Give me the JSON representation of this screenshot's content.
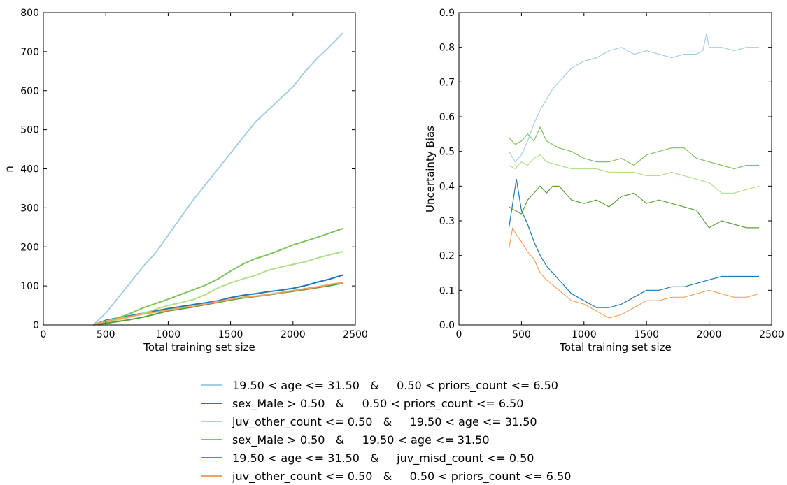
{
  "colors": {
    "series": [
      "#a6cee3",
      "#1f78b4",
      "#b2df8a",
      "#80c35f",
      "#5c9e3a",
      "#f4a261"
    ]
  },
  "legend": [
    "19.50 < age <= 31.50   &     0.50 < priors_count <= 6.50",
    "sex_Male > 0.50   &     0.50 < priors_count <= 6.50",
    "juv_other_count <= 0.50   &     19.50 < age <= 31.50",
    "sex_Male > 0.50   &     19.50 < age <= 31.50",
    "19.50 < age <= 31.50   &     juv_misd_count <= 0.50",
    "juv_other_count <= 0.50   &     0.50 < priors_count <= 6.50"
  ],
  "chart_data": [
    {
      "type": "line",
      "xlabel": "Total training set size",
      "ylabel": "n",
      "xlim": [
        0,
        2500
      ],
      "ylim": [
        0,
        800
      ],
      "xticks": [
        "0",
        "500",
        "1000",
        "1500",
        "2000",
        "2500"
      ],
      "yticks": [
        "0",
        "100",
        "200",
        "300",
        "400",
        "500",
        "600",
        "700",
        "800"
      ],
      "series": [
        {
          "name": "19.50 < age <= 31.50   &     0.50 < priors_count <= 6.50",
          "x": [
            400,
            500,
            600,
            700,
            800,
            900,
            1000,
            1100,
            1200,
            1300,
            1400,
            1500,
            1600,
            1700,
            1800,
            1900,
            2000,
            2100,
            2200,
            2300,
            2400
          ],
          "y": [
            0,
            30,
            70,
            110,
            150,
            185,
            230,
            275,
            320,
            360,
            400,
            440,
            480,
            520,
            550,
            580,
            610,
            650,
            685,
            715,
            748
          ]
        },
        {
          "name": "sex_Male > 0.50   &     0.50 < priors_count <= 6.50",
          "x": [
            400,
            500,
            600,
            700,
            800,
            900,
            1000,
            1100,
            1200,
            1300,
            1400,
            1500,
            1600,
            1700,
            1800,
            1900,
            2000,
            2100,
            2200,
            2300,
            2400
          ],
          "y": [
            0,
            12,
            18,
            24,
            30,
            36,
            42,
            47,
            52,
            57,
            62,
            70,
            76,
            80,
            85,
            89,
            94,
            101,
            110,
            118,
            128
          ]
        },
        {
          "name": "juv_other_count <= 0.50   &     19.50 < age <= 31.50",
          "x": [
            400,
            500,
            600,
            700,
            800,
            900,
            1000,
            1100,
            1200,
            1300,
            1400,
            1500,
            1600,
            1700,
            1800,
            1900,
            2000,
            2100,
            2200,
            2300,
            2400
          ],
          "y": [
            0,
            6,
            13,
            20,
            30,
            40,
            50,
            57,
            65,
            78,
            95,
            108,
            118,
            127,
            140,
            148,
            155,
            162,
            172,
            180,
            188
          ]
        },
        {
          "name": "sex_Male > 0.50   &     19.50 < age <= 31.50",
          "x": [
            400,
            500,
            600,
            700,
            800,
            900,
            1000,
            1100,
            1200,
            1300,
            1400,
            1500,
            1600,
            1700,
            1800,
            1900,
            2000,
            2100,
            2200,
            2300,
            2400
          ],
          "y": [
            0,
            8,
            18,
            30,
            44,
            55,
            66,
            78,
            90,
            102,
            118,
            138,
            156,
            170,
            180,
            192,
            205,
            215,
            225,
            236,
            247
          ]
        },
        {
          "name": "19.50 < age <= 31.50   &     juv_misd_count <= 0.50",
          "x": [
            400,
            500,
            600,
            700,
            800,
            900,
            1000,
            1100,
            1200,
            1300,
            1400,
            1500,
            1600,
            1700,
            1800,
            1900,
            2000,
            2100,
            2200,
            2300,
            2400
          ],
          "y": [
            0,
            4,
            9,
            14,
            20,
            28,
            36,
            41,
            46,
            52,
            58,
            64,
            69,
            73,
            77,
            82,
            86,
            91,
            96,
            101,
            107
          ]
        },
        {
          "name": "juv_other_count <= 0.50   &     0.50 < priors_count <= 6.50",
          "x": [
            400,
            500,
            600,
            700,
            800,
            900,
            1000,
            1100,
            1200,
            1300,
            1400,
            1500,
            1600,
            1700,
            1800,
            1900,
            2000,
            2100,
            2200,
            2300,
            2400
          ],
          "y": [
            0,
            10,
            16,
            22,
            28,
            33,
            38,
            44,
            48,
            54,
            60,
            66,
            71,
            74,
            78,
            83,
            88,
            93,
            98,
            104,
            109
          ]
        }
      ]
    },
    {
      "type": "line",
      "xlabel": "Total training set size",
      "ylabel": "Uncertainty Bias",
      "xlim": [
        0,
        2500
      ],
      "ylim": [
        0,
        0.9
      ],
      "xticks": [
        "0",
        "500",
        "1000",
        "1500",
        "2000",
        "2500"
      ],
      "yticks": [
        "0.0",
        "0.1",
        "0.2",
        "0.3",
        "0.4",
        "0.5",
        "0.6",
        "0.7",
        "0.8",
        "0.9"
      ],
      "series": [
        {
          "name": "19.50 < age <= 31.50   &     0.50 < priors_count <= 6.50",
          "x": [
            400,
            450,
            500,
            550,
            600,
            650,
            700,
            750,
            800,
            900,
            1000,
            1100,
            1200,
            1300,
            1400,
            1500,
            1600,
            1700,
            1800,
            1900,
            1950,
            1980,
            2000,
            2100,
            2200,
            2300,
            2400
          ],
          "y": [
            0.5,
            0.47,
            0.49,
            0.53,
            0.58,
            0.62,
            0.65,
            0.68,
            0.7,
            0.74,
            0.76,
            0.77,
            0.79,
            0.8,
            0.78,
            0.79,
            0.78,
            0.77,
            0.78,
            0.78,
            0.79,
            0.84,
            0.8,
            0.8,
            0.79,
            0.8,
            0.8
          ]
        },
        {
          "name": "sex_Male > 0.50   &     0.50 < priors_count <= 6.50",
          "x": [
            400,
            430,
            460,
            500,
            550,
            600,
            650,
            700,
            800,
            900,
            1000,
            1100,
            1200,
            1300,
            1400,
            1500,
            1600,
            1700,
            1800,
            1900,
            2000,
            2100,
            2200,
            2300,
            2400
          ],
          "y": [
            0.28,
            0.35,
            0.42,
            0.33,
            0.29,
            0.24,
            0.2,
            0.17,
            0.13,
            0.09,
            0.07,
            0.05,
            0.05,
            0.06,
            0.08,
            0.1,
            0.1,
            0.11,
            0.11,
            0.12,
            0.13,
            0.14,
            0.14,
            0.14,
            0.14
          ]
        },
        {
          "name": "juv_other_count <= 0.50   &     19.50 < age <= 31.50",
          "x": [
            400,
            450,
            500,
            550,
            600,
            650,
            700,
            800,
            900,
            1000,
            1100,
            1200,
            1300,
            1400,
            1500,
            1600,
            1700,
            1800,
            1900,
            2000,
            2100,
            2200,
            2300,
            2400
          ],
          "y": [
            0.46,
            0.45,
            0.47,
            0.46,
            0.48,
            0.49,
            0.47,
            0.46,
            0.45,
            0.45,
            0.45,
            0.44,
            0.44,
            0.44,
            0.43,
            0.43,
            0.44,
            0.43,
            0.42,
            0.41,
            0.38,
            0.38,
            0.39,
            0.4
          ]
        },
        {
          "name": "sex_Male > 0.50   &     19.50 < age <= 31.50",
          "x": [
            400,
            450,
            500,
            550,
            600,
            650,
            700,
            800,
            900,
            1000,
            1100,
            1200,
            1300,
            1400,
            1500,
            1600,
            1700,
            1800,
            1900,
            2000,
            2100,
            2200,
            2300,
            2400
          ],
          "y": [
            0.54,
            0.52,
            0.53,
            0.55,
            0.53,
            0.57,
            0.53,
            0.51,
            0.5,
            0.48,
            0.47,
            0.47,
            0.48,
            0.46,
            0.49,
            0.5,
            0.51,
            0.51,
            0.48,
            0.47,
            0.46,
            0.45,
            0.46,
            0.46
          ]
        },
        {
          "name": "19.50 < age <= 31.50   &     juv_misd_count <= 0.50",
          "x": [
            400,
            450,
            500,
            550,
            600,
            650,
            700,
            750,
            800,
            900,
            1000,
            1100,
            1200,
            1300,
            1400,
            1500,
            1600,
            1700,
            1800,
            1900,
            2000,
            2100,
            2200,
            2300,
            2400
          ],
          "y": [
            0.34,
            0.33,
            0.32,
            0.36,
            0.38,
            0.4,
            0.38,
            0.4,
            0.4,
            0.36,
            0.35,
            0.36,
            0.34,
            0.37,
            0.38,
            0.35,
            0.36,
            0.35,
            0.34,
            0.33,
            0.28,
            0.3,
            0.29,
            0.28,
            0.28
          ]
        },
        {
          "name": "juv_other_count <= 0.50   &     0.50 < priors_count <= 6.50",
          "x": [
            400,
            430,
            460,
            500,
            550,
            600,
            650,
            700,
            800,
            900,
            1000,
            1100,
            1200,
            1300,
            1400,
            1500,
            1600,
            1700,
            1800,
            1900,
            2000,
            2100,
            2200,
            2300,
            2400
          ],
          "y": [
            0.22,
            0.28,
            0.26,
            0.24,
            0.21,
            0.19,
            0.15,
            0.13,
            0.1,
            0.07,
            0.06,
            0.04,
            0.02,
            0.03,
            0.05,
            0.07,
            0.07,
            0.08,
            0.08,
            0.09,
            0.1,
            0.09,
            0.08,
            0.08,
            0.09
          ]
        }
      ]
    }
  ]
}
